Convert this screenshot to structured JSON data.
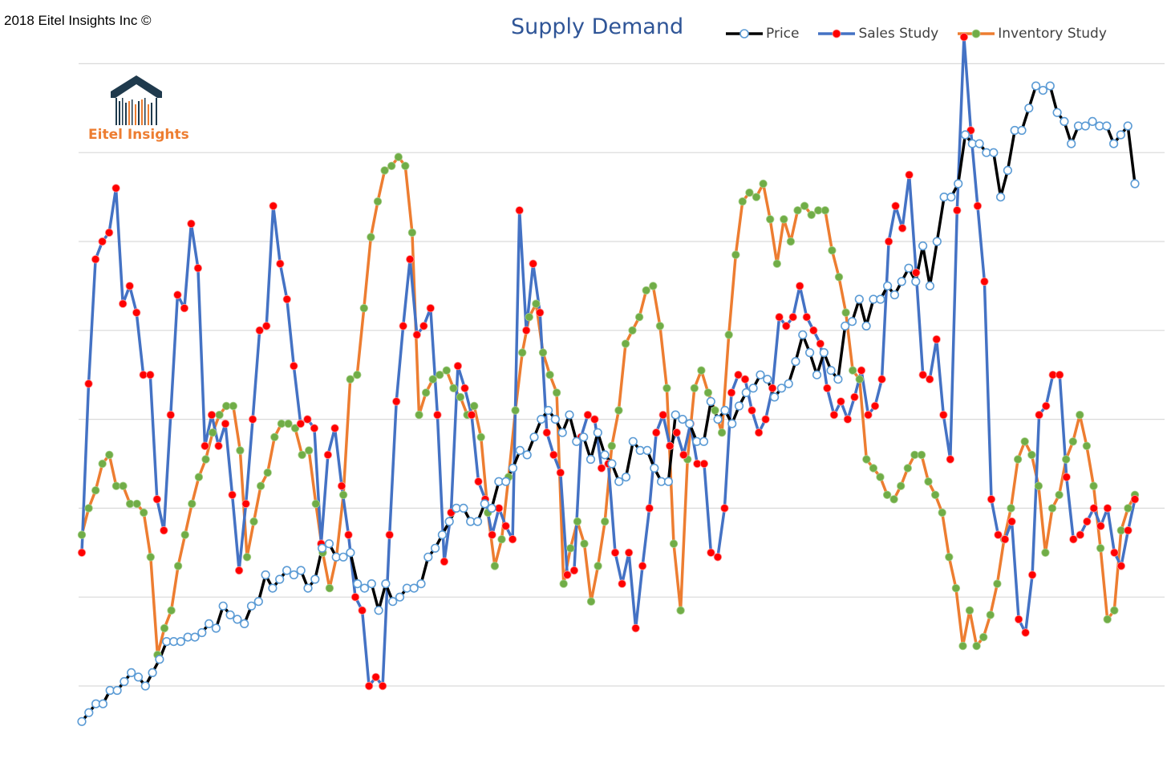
{
  "copyright": "2018 Eitel Insights Inc ©",
  "logo": {
    "text": "Eitel Insights",
    "icon": "house-barcode-logo-icon"
  },
  "colors": {
    "price_line": "#000000",
    "price_marker_fill": "#ffffff",
    "price_marker_stroke": "#5b9bd5",
    "sales_line": "#4472c4",
    "sales_marker": "#ff0000",
    "inventory_line": "#ed7d31",
    "inventory_marker": "#70ad47",
    "title": "#2f5597",
    "grid": "#d9d9d9",
    "logo_orange": "#ed7d31",
    "logo_dark": "#1f3a4d"
  },
  "chart_data": {
    "type": "line",
    "title": "Supply Demand",
    "xlabel": "",
    "ylabel": "",
    "grid": true,
    "legend_position": "top-right",
    "ylim": [
      0,
      8
    ],
    "series": [
      {
        "name": "Price",
        "values": [
          -0.4,
          -0.3,
          -0.2,
          -0.2,
          -0.05,
          -0.05,
          0.05,
          0.15,
          0.1,
          0.0,
          0.15,
          0.3,
          0.5,
          0.5,
          0.5,
          0.55,
          0.55,
          0.6,
          0.7,
          0.65,
          0.9,
          0.8,
          0.75,
          0.7,
          0.9,
          0.95,
          1.25,
          1.1,
          1.2,
          1.3,
          1.25,
          1.3,
          1.1,
          1.2,
          1.55,
          1.6,
          1.45,
          1.45,
          1.5,
          1.15,
          1.1,
          1.15,
          0.85,
          1.15,
          0.95,
          1.0,
          1.1,
          1.1,
          1.15,
          1.45,
          1.55,
          1.7,
          1.85,
          2.0,
          2.0,
          1.85,
          1.85,
          2.05,
          2.0,
          2.3,
          2.3,
          2.45,
          2.65,
          2.6,
          2.8,
          3.0,
          3.1,
          3.0,
          2.85,
          3.05,
          2.75,
          2.8,
          2.55,
          2.85,
          2.6,
          2.5,
          2.3,
          2.35,
          2.75,
          2.65,
          2.65,
          2.45,
          2.3,
          2.3,
          3.05,
          3.0,
          2.95,
          2.75,
          2.75,
          3.2,
          3.0,
          3.1,
          2.95,
          3.15,
          3.3,
          3.35,
          3.5,
          3.45,
          3.25,
          3.35,
          3.4,
          3.65,
          3.95,
          3.75,
          3.5,
          3.75,
          3.55,
          3.45,
          4.05,
          4.1,
          4.35,
          4.05,
          4.35,
          4.35,
          4.5,
          4.4,
          4.55,
          4.7,
          4.55,
          4.95,
          4.5,
          5.0,
          5.5,
          5.5,
          5.65,
          6.2,
          6.1,
          6.1,
          6.0,
          6.0,
          5.5,
          5.8,
          6.25,
          6.25,
          6.5,
          6.75,
          6.7,
          6.75,
          6.45,
          6.35,
          6.1,
          6.3,
          6.3,
          6.35,
          6.3,
          6.3,
          6.1,
          6.2,
          6.3,
          5.65
        ],
        "values_note": ""
      },
      {
        "name": "Sales Study",
        "values": [
          1.5,
          3.4,
          4.8,
          5.0,
          5.1,
          5.6,
          4.3,
          4.5,
          4.2,
          3.5,
          3.5,
          2.1,
          1.75,
          3.05,
          4.4,
          4.25,
          5.2,
          4.7,
          2.7,
          3.05,
          2.7,
          2.95,
          2.15,
          1.3,
          2.05,
          3.0,
          4.0,
          4.05,
          5.4,
          4.75,
          4.35,
          3.6,
          2.95,
          3.0,
          2.9,
          1.6,
          2.6,
          2.9,
          2.25,
          1.7,
          1.0,
          0.85,
          0.0,
          0.1,
          0.0,
          1.7,
          3.2,
          4.05,
          4.8,
          3.95,
          4.05,
          4.25,
          3.05,
          1.4,
          1.95,
          3.6,
          3.35,
          3.05,
          2.3,
          2.1,
          1.7,
          2.0,
          1.8,
          1.65,
          5.35,
          4.0,
          4.75,
          4.2,
          2.85,
          2.6,
          2.4,
          1.25,
          1.3,
          2.8,
          3.05,
          3.0,
          2.45,
          2.5,
          1.5,
          1.15,
          1.5,
          0.65,
          1.35,
          2.0,
          2.85,
          3.05,
          2.7,
          2.85,
          2.6,
          2.95,
          2.5,
          2.5,
          1.5,
          1.45,
          2.0,
          3.3,
          3.5,
          3.45,
          3.1,
          2.85,
          3.0,
          3.35,
          4.15,
          4.05,
          4.15,
          4.5,
          4.15,
          4.0,
          3.85,
          3.35,
          3.05,
          3.2,
          3.0,
          3.25,
          3.55,
          3.05,
          3.15,
          3.45,
          5.0,
          5.4,
          5.15,
          5.75,
          4.65,
          3.5,
          3.45,
          3.9,
          3.05,
          2.55,
          5.35,
          7.3,
          6.25,
          5.4,
          4.55,
          2.1,
          1.7,
          1.65,
          1.85,
          0.75,
          0.6,
          1.25,
          3.05,
          3.15,
          3.5,
          3.5,
          2.35,
          1.65,
          1.7,
          1.85,
          2.0,
          1.8,
          2.0,
          1.5,
          1.35,
          1.75,
          2.1
        ],
        "values_note": ""
      },
      {
        "name": "Inventory Study",
        "values": [
          1.7,
          2.0,
          2.2,
          2.5,
          2.6,
          2.25,
          2.25,
          2.05,
          2.05,
          1.95,
          1.45,
          0.35,
          0.65,
          0.85,
          1.35,
          1.7,
          2.05,
          2.35,
          2.55,
          2.85,
          3.05,
          3.15,
          3.15,
          2.65,
          1.45,
          1.85,
          2.25,
          2.4,
          2.8,
          2.95,
          2.95,
          2.9,
          2.6,
          2.65,
          2.05,
          1.5,
          1.1,
          1.45,
          2.15,
          3.45,
          3.5,
          4.25,
          5.05,
          5.45,
          5.8,
          5.85,
          5.95,
          5.85,
          5.1,
          3.05,
          3.3,
          3.45,
          3.5,
          3.55,
          3.35,
          3.25,
          3.05,
          3.15,
          2.8,
          1.95,
          1.35,
          1.65,
          2.35,
          3.1,
          3.75,
          4.15,
          4.3,
          3.75,
          3.5,
          3.3,
          1.15,
          1.55,
          1.85,
          1.6,
          0.95,
          1.35,
          1.85,
          2.7,
          3.1,
          3.85,
          4.0,
          4.15,
          4.45,
          4.5,
          4.05,
          3.35,
          1.6,
          0.85,
          2.55,
          3.35,
          3.55,
          3.3,
          3.1,
          2.85,
          3.95,
          4.85,
          5.45,
          5.55,
          5.5,
          5.65,
          5.25,
          4.75,
          5.25,
          5.0,
          5.35,
          5.4,
          5.3,
          5.35,
          5.35,
          4.9,
          4.6,
          4.2,
          3.55,
          3.45,
          2.55,
          2.45,
          2.35,
          2.15,
          2.1,
          2.25,
          2.45,
          2.6,
          2.6,
          2.3,
          2.15,
          1.95,
          1.45,
          1.1,
          0.45,
          0.85,
          0.45,
          0.55,
          0.8,
          1.15,
          1.65,
          2.0,
          2.55,
          2.75,
          2.6,
          2.25,
          1.5,
          2.0,
          2.15,
          2.55,
          2.75,
          3.05,
          2.7,
          2.25,
          1.55,
          0.75,
          0.85,
          1.75,
          2.0,
          2.15
        ],
        "values_note": ""
      }
    ]
  }
}
